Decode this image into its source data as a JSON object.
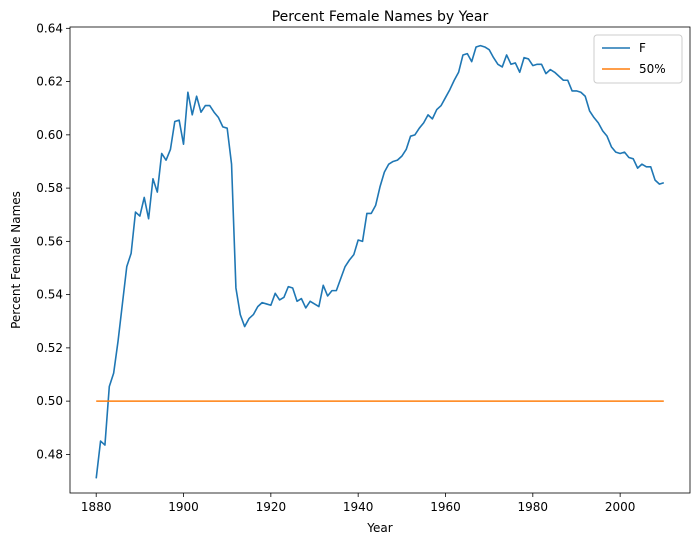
{
  "chart_data": {
    "type": "line",
    "title": "Percent Female Names by Year",
    "xlabel": "Year",
    "ylabel": "Percent Female Names",
    "xlim": [
      1874,
      2016
    ],
    "ylim": [
      0.4655,
      0.6405
    ],
    "xticks": [
      1880,
      1900,
      1920,
      1940,
      1960,
      1980,
      2000
    ],
    "yticks": [
      0.48,
      0.5,
      0.52,
      0.54,
      0.56,
      0.58,
      0.6,
      0.62,
      0.64
    ],
    "x_tick_labels": [
      "1880",
      "1900",
      "1920",
      "1940",
      "1960",
      "1980",
      "2000"
    ],
    "y_tick_labels": [
      "0.48",
      "0.50",
      "0.52",
      "0.54",
      "0.56",
      "0.58",
      "0.60",
      "0.62",
      "0.64"
    ],
    "grid": false,
    "legend_position": "top-right",
    "series": [
      {
        "name": "F",
        "color": "#1f77b4",
        "x": [
          1880,
          1881,
          1882,
          1883,
          1884,
          1885,
          1886,
          1887,
          1888,
          1889,
          1890,
          1891,
          1892,
          1893,
          1894,
          1895,
          1896,
          1897,
          1898,
          1899,
          1900,
          1901,
          1902,
          1903,
          1904,
          1905,
          1906,
          1907,
          1908,
          1909,
          1910,
          1911,
          1912,
          1913,
          1914,
          1915,
          1916,
          1917,
          1918,
          1919,
          1920,
          1921,
          1922,
          1923,
          1924,
          1925,
          1926,
          1927,
          1928,
          1929,
          1930,
          1931,
          1932,
          1933,
          1934,
          1935,
          1936,
          1937,
          1938,
          1939,
          1940,
          1941,
          1942,
          1943,
          1944,
          1945,
          1946,
          1947,
          1948,
          1949,
          1950,
          1951,
          1952,
          1953,
          1954,
          1955,
          1956,
          1957,
          1958,
          1959,
          1960,
          1961,
          1962,
          1963,
          1964,
          1965,
          1966,
          1967,
          1968,
          1969,
          1970,
          1971,
          1972,
          1973,
          1974,
          1975,
          1976,
          1977,
          1978,
          1979,
          1980,
          1981,
          1982,
          1983,
          1984,
          1985,
          1986,
          1987,
          1988,
          1989,
          1990,
          1991,
          1992,
          1993,
          1994,
          1995,
          1996,
          1997,
          1998,
          1999,
          2000,
          2001,
          2002,
          2003,
          2004,
          2005,
          2006,
          2007,
          2008,
          2009,
          2010
        ],
        "values": [
          0.471,
          0.485,
          0.4835,
          0.5055,
          0.5105,
          0.5225,
          0.5365,
          0.5505,
          0.5555,
          0.571,
          0.5695,
          0.5765,
          0.5685,
          0.5835,
          0.5785,
          0.593,
          0.5905,
          0.5945,
          0.605,
          0.6055,
          0.5965,
          0.616,
          0.6075,
          0.6145,
          0.6085,
          0.611,
          0.611,
          0.6085,
          0.6065,
          0.603,
          0.6025,
          0.589,
          0.5425,
          0.5325,
          0.528,
          0.531,
          0.5325,
          0.5355,
          0.537,
          0.5365,
          0.536,
          0.5405,
          0.538,
          0.539,
          0.543,
          0.5425,
          0.5375,
          0.5385,
          0.535,
          0.5375,
          0.5365,
          0.5355,
          0.5435,
          0.5395,
          0.5415,
          0.5415,
          0.546,
          0.5505,
          0.553,
          0.555,
          0.5605,
          0.56,
          0.5705,
          0.5705,
          0.5735,
          0.5805,
          0.586,
          0.589,
          0.59,
          0.5905,
          0.592,
          0.5945,
          0.5995,
          0.6,
          0.6025,
          0.6045,
          0.6075,
          0.606,
          0.6095,
          0.611,
          0.614,
          0.617,
          0.6205,
          0.6235,
          0.63,
          0.6305,
          0.6275,
          0.633,
          0.6335,
          0.633,
          0.632,
          0.629,
          0.6265,
          0.6255,
          0.63,
          0.6265,
          0.627,
          0.6235,
          0.629,
          0.6285,
          0.626,
          0.6265,
          0.6265,
          0.623,
          0.6245,
          0.6235,
          0.622,
          0.6205,
          0.6205,
          0.6165,
          0.6165,
          0.616,
          0.6145,
          0.609,
          0.6065,
          0.6045,
          0.6015,
          0.5995,
          0.5955,
          0.5935,
          0.593,
          0.5935,
          0.5915,
          0.591,
          0.5875,
          0.589,
          0.588,
          0.588,
          0.583,
          0.5815,
          0.582
        ]
      },
      {
        "name": "50%",
        "color": "#ff7f0e",
        "x": [
          1880,
          2010
        ],
        "values": [
          0.5,
          0.5
        ]
      }
    ]
  }
}
